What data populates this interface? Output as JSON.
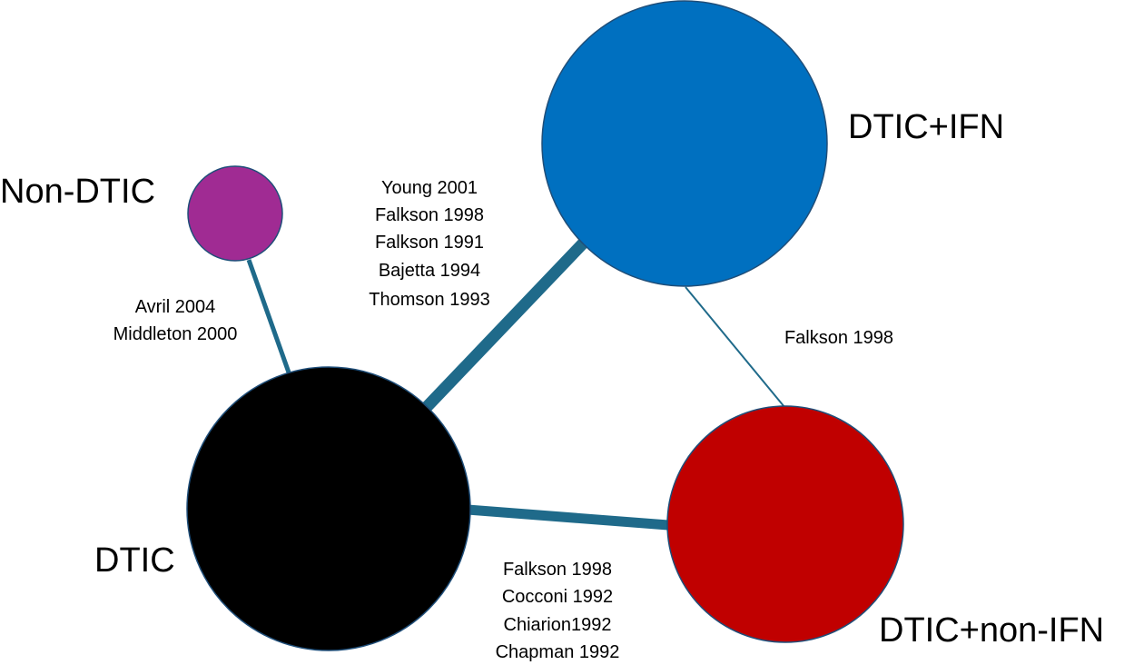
{
  "colors": {
    "edge": "#1F6A8A",
    "node_outline": "#1F4E79"
  },
  "nodes": {
    "dtic_ifn": {
      "label": "DTIC+IFN",
      "color": "#0070C0"
    },
    "non_dtic": {
      "label": "Non-DTIC",
      "color": "#A02B93"
    },
    "dtic": {
      "label": "DTIC",
      "color": "#000000"
    },
    "dtic_non_ifn": {
      "label": "DTIC+non-IFN",
      "color": "#C00000"
    }
  },
  "edges": {
    "non_dtic_dtic": {
      "studies": [
        "Avril 2004",
        "Middleton 2000"
      ]
    },
    "dtic_dtic_ifn": {
      "studies": [
        "Young 2001",
        "Falkson 1998",
        "Falkson 1991",
        "Bajetta 1994",
        "Thomson 1993"
      ]
    },
    "dtic_ifn_dtic_non_ifn": {
      "studies": [
        "Falkson 1998"
      ]
    },
    "dtic_dtic_non_ifn": {
      "studies": [
        "Falkson 1998",
        "Cocconi 1992",
        "Chiarion1992",
        "Chapman 1992"
      ]
    }
  }
}
